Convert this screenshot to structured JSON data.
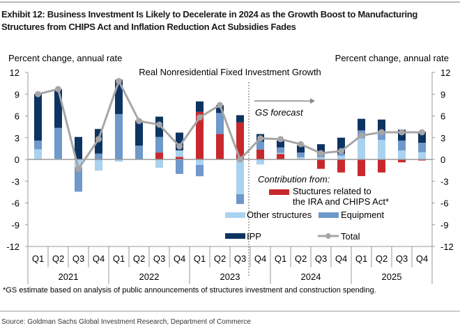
{
  "header": {
    "title_line1": "Exhibit 12: Business Investment Is Likely to Decelerate in 2024 as the Growth Boost to Manufacturing",
    "title_line2": "Structures from CHIPS Act and Inflation Reduction Act Subsidies Fades"
  },
  "footnote": "*GS estimate based on analysis of public announcements of structures investment and construction spending.",
  "source": "Source: Goldman Sachs Global Investment Research, Department of Commerce",
  "chart_data": {
    "type": "bar",
    "stacked": true,
    "title": "Real Nonresidential Fixed Investment Growth",
    "ylabel_left": "Percent change, annual rate",
    "ylabel_right": "Percent change, annual rate",
    "ylim": [
      -12,
      12
    ],
    "yticks": [
      12,
      9,
      6,
      3,
      0,
      -3,
      -6,
      -9,
      -12
    ],
    "categories": [
      "Q1",
      "Q2",
      "Q3",
      "Q4",
      "Q1",
      "Q2",
      "Q3",
      "Q4",
      "Q1",
      "Q2",
      "Q3",
      "Q4",
      "Q1",
      "Q2",
      "Q3",
      "Q4",
      "Q1",
      "Q2",
      "Q3",
      "Q4"
    ],
    "years": [
      "2021",
      "2022",
      "2023",
      "2024",
      "2025"
    ],
    "forecast_label": "GS forecast",
    "forecast_starts_at_index": 11,
    "legend_heading": "Contribution from:",
    "legend_position": "bottom-right",
    "grid": false,
    "series": [
      {
        "name": "Stuctures related to the IRA and CHIPS Act*",
        "color": "#c8282d",
        "values": [
          0,
          0,
          0,
          0,
          0,
          0,
          0.95,
          0.35,
          6.55,
          3.5,
          5.1,
          1.35,
          0.75,
          0,
          -1.3,
          -1.8,
          -2.3,
          -1.8,
          -0.4,
          -0.15
        ]
      },
      {
        "name": "Other structures",
        "color": "#a9d2ef",
        "values": [
          1.4,
          0.1,
          -1.1,
          -1.55,
          -0.3,
          0,
          -1.15,
          0.9,
          -0.77,
          0,
          -4.8,
          -0.7,
          0.15,
          0.3,
          0.3,
          0.5,
          2.9,
          2.7,
          1.25,
          1.0
        ]
      },
      {
        "name": "Equipment",
        "color": "#6f98cb",
        "values": [
          1.2,
          4.25,
          -3.35,
          0.8,
          6.25,
          1.9,
          2.15,
          -2.0,
          -1.55,
          2.9,
          -1.35,
          1.1,
          0.75,
          0.65,
          0.55,
          0.3,
          1.1,
          1.2,
          1.35,
          1.3
        ]
      },
      {
        "name": "IPP",
        "color": "#0d3461",
        "values": [
          6.4,
          5.35,
          3.1,
          3.4,
          4.75,
          3.45,
          2.8,
          2.45,
          1.45,
          1.1,
          1.0,
          1.05,
          0.95,
          1.0,
          1.25,
          2.2,
          1.6,
          1.6,
          1.5,
          1.55
        ]
      }
    ],
    "line": {
      "name": "Total",
      "color": "#a6a6a6",
      "values": [
        9.0,
        9.7,
        -1.3,
        2.8,
        10.8,
        5.3,
        4.8,
        1.8,
        5.8,
        7.5,
        0.0,
        2.9,
        2.8,
        2.1,
        0.85,
        1.15,
        3.3,
        3.75,
        3.75,
        3.75
      ]
    }
  }
}
